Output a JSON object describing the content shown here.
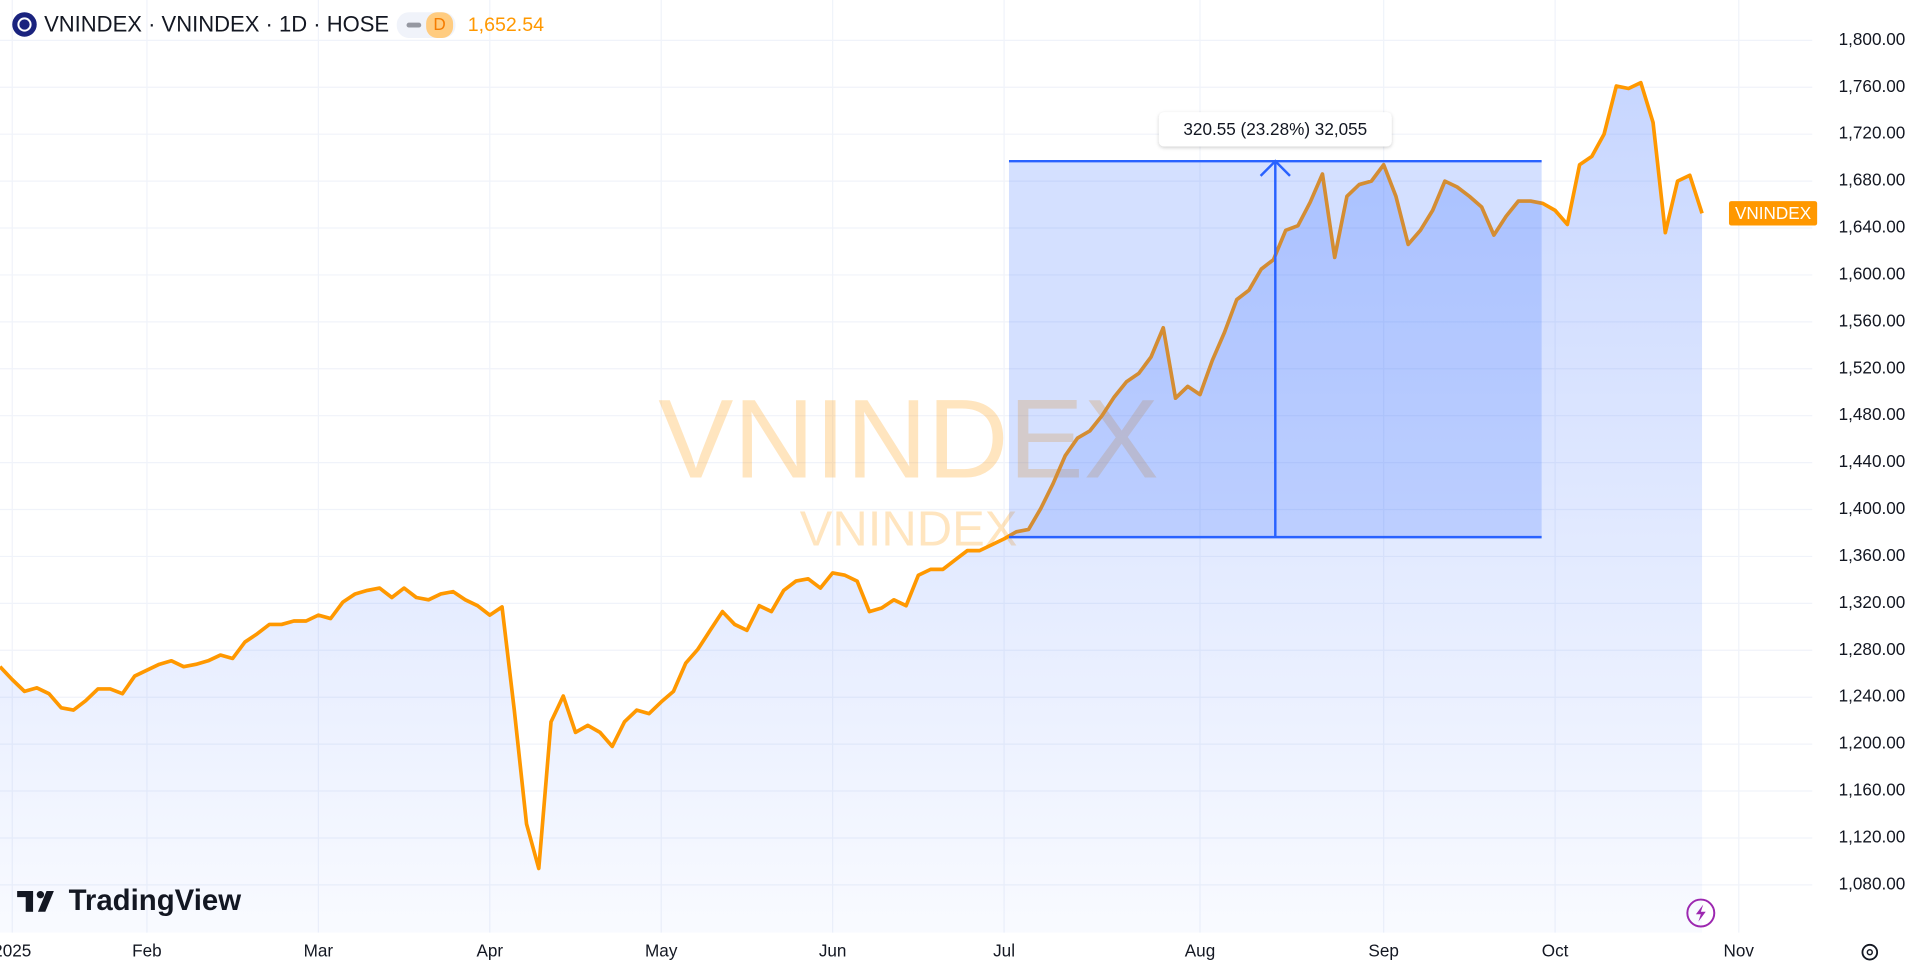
{
  "header": {
    "symbol": "VNINDEX · VNINDEX · 1D · HOSE",
    "interval": "D",
    "last_price": "1,652.54"
  },
  "watermark": {
    "symbol": "VNINDEX",
    "description": "VNINDEX"
  },
  "branding": "TradingView",
  "chart_data": {
    "type": "area",
    "categories": [
      null,
      "2025",
      null,
      null,
      null,
      null,
      null,
      null,
      null,
      null,
      null,
      null,
      "Feb",
      null,
      null,
      null,
      null,
      null,
      null,
      null,
      null,
      null,
      null,
      null,
      null,
      null,
      "Mar",
      null,
      null,
      null,
      null,
      null,
      null,
      null,
      null,
      null,
      null,
      null,
      null,
      null,
      "Apr",
      null,
      null,
      null,
      null,
      null,
      null,
      null,
      null,
      null,
      null,
      null,
      null,
      null,
      "May",
      null,
      null,
      null,
      null,
      null,
      null,
      null,
      null,
      null,
      null,
      null,
      null,
      null,
      "Jun",
      null,
      null,
      null,
      null,
      null,
      null,
      null,
      null,
      null,
      null,
      null,
      null,
      null,
      "Jul",
      null,
      null,
      null,
      null,
      null,
      null,
      null,
      null,
      null,
      null,
      null,
      null,
      null,
      null,
      null,
      "Aug",
      null,
      null,
      null,
      null,
      null,
      null,
      null,
      null,
      null,
      null,
      null,
      null,
      null,
      null,
      "Sep",
      null,
      null,
      null,
      null,
      null,
      null,
      null,
      null,
      null,
      null,
      null,
      null,
      null,
      "Oct",
      null,
      null,
      null,
      null,
      null,
      null,
      null,
      null,
      null,
      null,
      null,
      null,
      null,
      null,
      "Nov",
      null,
      null,
      null,
      null,
      null,
      null
    ],
    "series": [
      {
        "name": "VNINDEX",
        "color": "#ff9800",
        "values": [
          1266,
          1255,
          1245,
          1248,
          1243,
          1231,
          1229,
          1237,
          1247,
          1247,
          1243,
          1258,
          1263,
          1268,
          1271,
          1266,
          1268,
          1271,
          1276,
          1273,
          1287,
          1294,
          1302,
          1302,
          1305,
          1305,
          1310,
          1307,
          1321,
          1328,
          1331,
          1333,
          1325,
          1333,
          1325,
          1323,
          1328,
          1330,
          1323,
          1318,
          1310,
          1317,
          1229,
          1132,
          1094,
          1219,
          1241,
          1210,
          1216,
          1210,
          1198,
          1219,
          1229,
          1226,
          1236,
          1245,
          1269,
          1281,
          1297,
          1313,
          1302,
          1297,
          1318,
          1313,
          1331,
          1339,
          1341,
          1333,
          1346,
          1344,
          1339,
          1313,
          1316,
          1323,
          1318,
          1344,
          1349,
          1349,
          1357,
          1365,
          1365,
          1370,
          1375,
          1381,
          1383,
          1401,
          1422,
          1446,
          1461,
          1467,
          1480,
          1496,
          1509,
          1516,
          1530,
          1555,
          1495,
          1505,
          1498,
          1527,
          1551,
          1579,
          1587,
          1605,
          1613,
          1638,
          1642,
          1662,
          1686,
          1615,
          1667,
          1677,
          1680,
          1694,
          1667,
          1626,
          1638,
          1655,
          1680,
          1675,
          1667,
          1658,
          1634,
          1650,
          1663,
          1663,
          1661,
          1655,
          1643,
          1694,
          1701,
          1720,
          1761,
          1759,
          1764,
          1730,
          1636,
          1680,
          1685,
          1652.54,
          null,
          null,
          null,
          null,
          null,
          null,
          null,
          null,
          null
        ]
      }
    ],
    "ylim": [
      1039.3,
      1834.4
    ],
    "yticks": [
      {
        "value": 1080,
        "label": "1,080.00"
      },
      {
        "value": 1120,
        "label": "1,120.00"
      },
      {
        "value": 1160,
        "label": "1,160.00"
      },
      {
        "value": 1200,
        "label": "1,200.00"
      },
      {
        "value": 1240,
        "label": "1,240.00"
      },
      {
        "value": 1280,
        "label": "1,280.00"
      },
      {
        "value": 1320,
        "label": "1,320.00"
      },
      {
        "value": 1360,
        "label": "1,360.00"
      },
      {
        "value": 1400,
        "label": "1,400.00"
      },
      {
        "value": 1440,
        "label": "1,440.00"
      },
      {
        "value": 1480,
        "label": "1,480.00"
      },
      {
        "value": 1520,
        "label": "1,520.00"
      },
      {
        "value": 1560,
        "label": "1,560.00"
      },
      {
        "value": 1600,
        "label": "1,600.00"
      },
      {
        "value": 1640,
        "label": "1,640.00"
      },
      {
        "value": 1680,
        "label": "1,680.00"
      },
      {
        "value": 1720,
        "label": "1,720.00"
      },
      {
        "value": 1760,
        "label": "1,760.00"
      },
      {
        "value": 1800,
        "label": "1,800.00"
      }
    ],
    "grid": true,
    "measure": {
      "label": "320.55 (23.28%) 32,055",
      "low": 1376.45,
      "high": 1697,
      "start_index": 82.4,
      "end_index": 125.9,
      "color": "#2962ff"
    }
  }
}
